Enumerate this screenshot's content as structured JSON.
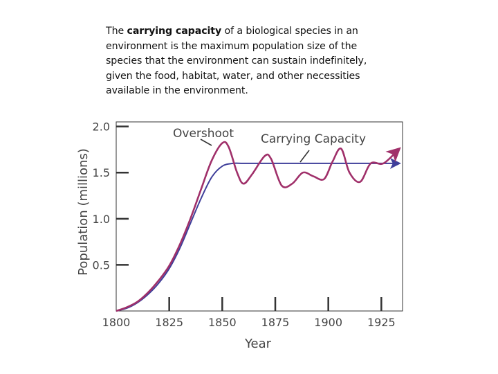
{
  "definition": {
    "lead": "The",
    "term": "carrying capacity",
    "body": "of a biological species in an environment is the maximum population size of the species that the environment can sustain indefinitely, given the food, habitat, water, and other necessities available in the environment."
  },
  "chart_data": {
    "type": "line",
    "title": "",
    "xlabel": "Year",
    "ylabel": "Population (millions)",
    "xlim": [
      1800,
      1935
    ],
    "ylim": [
      0,
      2.05
    ],
    "x_ticks": [
      "1800",
      "1825",
      "1850",
      "1875",
      "1900",
      "1925"
    ],
    "y_ticks": [
      "2.0",
      "1.5",
      "1.0",
      "0.5"
    ],
    "x_tick_values": [
      1800,
      1825,
      1850,
      1875,
      1900,
      1925
    ],
    "y_tick_values": [
      2.0,
      1.5,
      1.0,
      0.5
    ],
    "annotations": [
      "Overshoot",
      "Carrying Capacity"
    ],
    "colors": {
      "population": "#a0306a",
      "capacity": "#3f3f9a",
      "axis": "#333333"
    },
    "series": [
      {
        "name": "Carrying capacity",
        "x": [
          1800,
          1805,
          1810,
          1815,
          1820,
          1825,
          1830,
          1835,
          1840,
          1845,
          1850,
          1855,
          1860,
          1870,
          1880,
          1890,
          1900,
          1910,
          1920,
          1933
        ],
        "values": [
          0.0,
          0.03,
          0.09,
          0.18,
          0.3,
          0.46,
          0.68,
          0.95,
          1.22,
          1.45,
          1.57,
          1.6,
          1.6,
          1.6,
          1.6,
          1.6,
          1.6,
          1.6,
          1.6,
          1.6
        ]
      },
      {
        "name": "Population",
        "x": [
          1800,
          1805,
          1810,
          1815,
          1820,
          1825,
          1830,
          1835,
          1840,
          1845,
          1850,
          1853,
          1857,
          1860,
          1864,
          1870,
          1873,
          1878,
          1883,
          1888,
          1893,
          1898,
          1902,
          1906,
          1910,
          1915,
          1920,
          1926,
          1933
        ],
        "values": [
          0.0,
          0.04,
          0.1,
          0.2,
          0.33,
          0.49,
          0.72,
          1.0,
          1.32,
          1.63,
          1.82,
          1.78,
          1.5,
          1.38,
          1.48,
          1.68,
          1.65,
          1.36,
          1.38,
          1.5,
          1.46,
          1.43,
          1.62,
          1.76,
          1.5,
          1.4,
          1.6,
          1.6,
          1.75
        ]
      }
    ]
  }
}
